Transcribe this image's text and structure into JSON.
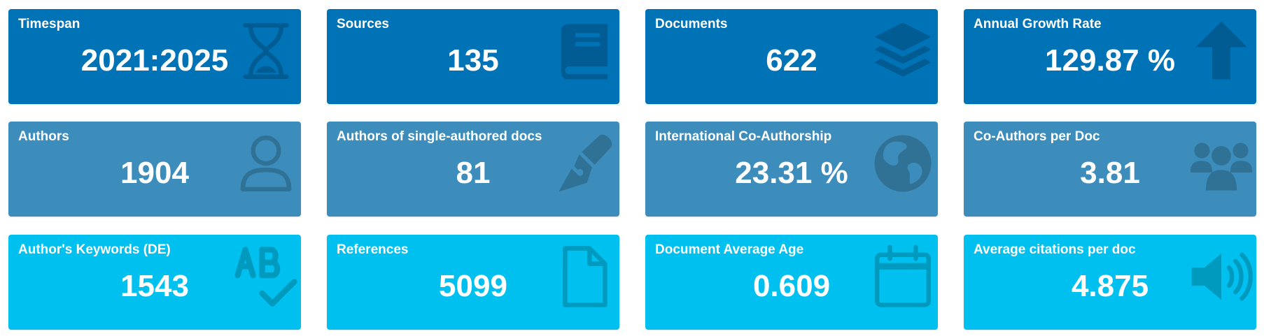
{
  "colors": {
    "row1": "#0073b7",
    "row1_icon": "#005c92",
    "row2": "#3c8dbc",
    "row2_icon": "#307196",
    "row3": "#00c0ef",
    "row3_icon": "#009abf"
  },
  "boxes": [
    {
      "label": "Timespan",
      "value": "2021:2025",
      "icon": "hourglass-icon"
    },
    {
      "label": "Sources",
      "value": "135",
      "icon": "book-icon"
    },
    {
      "label": "Documents",
      "value": "622",
      "icon": "layers-icon"
    },
    {
      "label": "Annual Growth Rate",
      "value": "129.87 %",
      "icon": "arrow-up-icon"
    },
    {
      "label": "Authors",
      "value": "1904",
      "icon": "user-icon"
    },
    {
      "label": "Authors of single-authored docs",
      "value": "81",
      "icon": "pen-nib-icon"
    },
    {
      "label": "International Co-Authorship",
      "value": "23.31 %",
      "icon": "globe-icon"
    },
    {
      "label": "Co-Authors per Doc",
      "value": "3.81",
      "icon": "users-icon"
    },
    {
      "label": "Author's Keywords (DE)",
      "value": "1543",
      "icon": "spell-check-icon"
    },
    {
      "label": "References",
      "value": "5099",
      "icon": "file-icon"
    },
    {
      "label": "Document Average Age",
      "value": "0.609",
      "icon": "calendar-icon"
    },
    {
      "label": "Average citations per doc",
      "value": "4.875",
      "icon": "volume-icon"
    }
  ]
}
